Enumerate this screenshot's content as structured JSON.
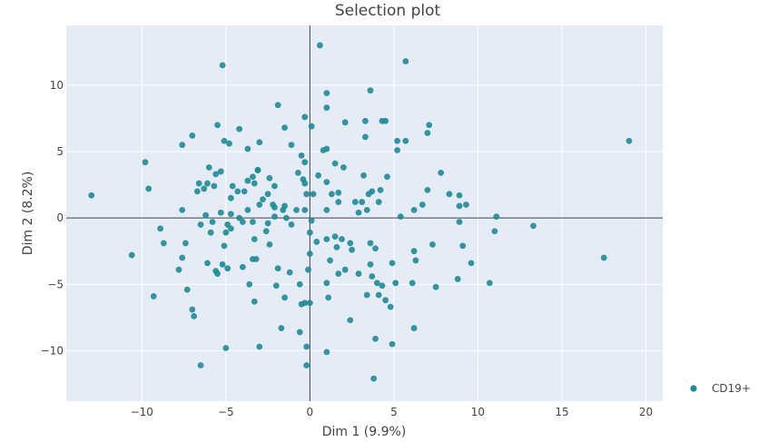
{
  "chart_data": {
    "type": "scatter",
    "title": "Selection plot",
    "xlabel": "Dim 1 (9.9%)",
    "ylabel": "Dim 2 (8.2%)",
    "xlim": [
      -14.5,
      21
    ],
    "ylim": [
      -13.8,
      14.5
    ],
    "xticks": [
      -10,
      -5,
      0,
      5,
      10,
      15,
      20
    ],
    "yticks": [
      -10,
      -5,
      0,
      5,
      10
    ],
    "xtick_labels": [
      "−10",
      "−5",
      "0",
      "5",
      "10",
      "15",
      "20"
    ],
    "ytick_labels": [
      "−10",
      "−5",
      "0",
      "5",
      "10"
    ],
    "grid": true,
    "zero_lines": true,
    "legend_position": "right",
    "colors": {
      "plot_bg": "#e5ecf6",
      "grid": "#ffffff",
      "zero_line": "#444444",
      "marker": "#1f8a96"
    },
    "series": [
      {
        "name": "CD19+",
        "points": [
          [
            0.6,
            13.0
          ],
          [
            5.7,
            11.8
          ],
          [
            -5.2,
            11.5
          ],
          [
            1.0,
            9.4
          ],
          [
            3.6,
            9.6
          ],
          [
            -1.9,
            8.5
          ],
          [
            1.0,
            8.3
          ],
          [
            -0.3,
            7.6
          ],
          [
            2.1,
            7.2
          ],
          [
            3.3,
            7.3
          ],
          [
            4.3,
            7.3
          ],
          [
            4.5,
            7.3
          ],
          [
            7.1,
            7.0
          ],
          [
            -5.5,
            7.0
          ],
          [
            -1.5,
            6.8
          ],
          [
            -4.2,
            6.7
          ],
          [
            0.1,
            6.9
          ],
          [
            3.3,
            6.1
          ],
          [
            7.0,
            6.4
          ],
          [
            -7.0,
            6.2
          ],
          [
            -5.1,
            5.8
          ],
          [
            -4.8,
            5.6
          ],
          [
            -3.0,
            5.7
          ],
          [
            -1.1,
            5.5
          ],
          [
            5.2,
            5.8
          ],
          [
            5.7,
            5.8
          ],
          [
            19.0,
            5.8
          ],
          [
            -7.6,
            5.5
          ],
          [
            -3.7,
            5.2
          ],
          [
            0.8,
            5.1
          ],
          [
            1.0,
            5.2
          ],
          [
            5.2,
            5.1
          ],
          [
            -9.8,
            4.2
          ],
          [
            -0.5,
            4.7
          ],
          [
            -0.3,
            4.2
          ],
          [
            1.5,
            4.1
          ],
          [
            2.0,
            3.8
          ],
          [
            -6.0,
            3.8
          ],
          [
            -5.3,
            3.5
          ],
          [
            -3.1,
            3.6
          ],
          [
            -3.1,
            3.6
          ],
          [
            -0.7,
            3.4
          ],
          [
            7.8,
            3.4
          ],
          [
            -5.6,
            3.3
          ],
          [
            -3.4,
            3.1
          ],
          [
            -2.4,
            3.0
          ],
          [
            0.5,
            3.2
          ],
          [
            3.2,
            3.2
          ],
          [
            4.6,
            3.1
          ],
          [
            -3.7,
            2.8
          ],
          [
            -0.4,
            2.9
          ],
          [
            -6.6,
            2.6
          ],
          [
            -6.1,
            2.6
          ],
          [
            -5.7,
            2.4
          ],
          [
            -4.6,
            2.4
          ],
          [
            -3.3,
            2.6
          ],
          [
            -2.1,
            2.4
          ],
          [
            -0.3,
            2.6
          ],
          [
            1.0,
            2.7
          ],
          [
            -9.6,
            2.2
          ],
          [
            -6.7,
            2.0
          ],
          [
            -6.3,
            2.2
          ],
          [
            -3.9,
            2.0
          ],
          [
            -4.3,
            2.0
          ],
          [
            -2.5,
            1.8
          ],
          [
            -0.2,
            1.8
          ],
          [
            0.2,
            1.8
          ],
          [
            1.7,
            1.9
          ],
          [
            3.7,
            2.0
          ],
          [
            4.2,
            2.1
          ],
          [
            7.0,
            2.1
          ],
          [
            8.3,
            1.8
          ],
          [
            8.9,
            1.7
          ],
          [
            -13.0,
            1.7
          ],
          [
            -4.7,
            1.5
          ],
          [
            -2.8,
            1.4
          ],
          [
            1.3,
            1.8
          ],
          [
            3.5,
            1.8
          ],
          [
            -7.6,
            0.6
          ],
          [
            -3.0,
            1.0
          ],
          [
            -2.2,
            1.0
          ],
          [
            -1.5,
            0.9
          ],
          [
            1.7,
            1.2
          ],
          [
            2.7,
            1.2
          ],
          [
            3.1,
            1.2
          ],
          [
            4.1,
            1.2
          ],
          [
            6.7,
            1.0
          ],
          [
            8.9,
            0.9
          ],
          [
            9.3,
            1.0
          ],
          [
            -5.3,
            0.4
          ],
          [
            -4.7,
            0.3
          ],
          [
            -3.7,
            0.6
          ],
          [
            -2.1,
            0.8
          ],
          [
            -1.6,
            0.6
          ],
          [
            -0.8,
            0.6
          ],
          [
            -0.3,
            0.6
          ],
          [
            1.0,
            0.6
          ],
          [
            2.9,
            0.4
          ],
          [
            3.4,
            0.6
          ],
          [
            6.2,
            0.6
          ],
          [
            5.4,
            0.1
          ],
          [
            11.1,
            0.1
          ],
          [
            -6.2,
            0.2
          ],
          [
            -4.2,
            0.0
          ],
          [
            -2.1,
            0.1
          ],
          [
            -1.4,
            0.0
          ],
          [
            -4.9,
            -0.5
          ],
          [
            -6.5,
            -0.5
          ],
          [
            -5.8,
            -0.3
          ],
          [
            -4.0,
            -0.3
          ],
          [
            -3.4,
            -0.3
          ],
          [
            -2.5,
            -0.4
          ],
          [
            -1.1,
            -0.5
          ],
          [
            0.1,
            -0.2
          ],
          [
            -8.9,
            -0.8
          ],
          [
            -4.7,
            -0.8
          ],
          [
            -2.6,
            -1.0
          ],
          [
            8.9,
            -0.3
          ],
          [
            11.0,
            -1.0
          ],
          [
            13.3,
            -0.6
          ],
          [
            -5.9,
            -1.1
          ],
          [
            -5.0,
            -1.1
          ],
          [
            0.0,
            -1.1
          ],
          [
            -3.3,
            -1.6
          ],
          [
            1.0,
            -1.6
          ],
          [
            1.5,
            -1.4
          ],
          [
            1.9,
            -1.6
          ],
          [
            -8.7,
            -1.9
          ],
          [
            -7.4,
            -1.9
          ],
          [
            -2.4,
            -2.0
          ],
          [
            0.4,
            -1.8
          ],
          [
            2.4,
            -1.9
          ],
          [
            3.6,
            -1.9
          ],
          [
            7.3,
            -2.0
          ],
          [
            9.1,
            -2.1
          ],
          [
            -5.1,
            -2.1
          ],
          [
            2.5,
            -2.4
          ],
          [
            1.6,
            -2.2
          ],
          [
            3.9,
            -2.3
          ],
          [
            6.2,
            -2.5
          ],
          [
            -10.6,
            -2.8
          ],
          [
            0.0,
            -2.7
          ],
          [
            -7.6,
            -3.0
          ],
          [
            -3.4,
            -3.1
          ],
          [
            -3.2,
            -3.1
          ],
          [
            1.2,
            -3.2
          ],
          [
            3.6,
            -3.5
          ],
          [
            4.9,
            -3.4
          ],
          [
            6.3,
            -3.2
          ],
          [
            9.6,
            -3.4
          ],
          [
            17.5,
            -3.0
          ],
          [
            -6.1,
            -3.4
          ],
          [
            -5.2,
            -3.5
          ],
          [
            -4.0,
            -3.7
          ],
          [
            -4.9,
            -3.8
          ],
          [
            -5.6,
            -4.0
          ],
          [
            -5.5,
            -4.2
          ],
          [
            -1.9,
            -3.8
          ],
          [
            -1.2,
            -4.1
          ],
          [
            -0.1,
            -3.9
          ],
          [
            2.1,
            -3.9
          ],
          [
            1.7,
            -4.2
          ],
          [
            -7.8,
            -3.9
          ],
          [
            2.9,
            -4.2
          ],
          [
            3.7,
            -4.4
          ],
          [
            8.8,
            -4.6
          ],
          [
            1.0,
            -4.9
          ],
          [
            4.0,
            -4.9
          ],
          [
            4.3,
            -5.1
          ],
          [
            5.1,
            -4.9
          ],
          [
            6.1,
            -4.9
          ],
          [
            7.5,
            -5.2
          ],
          [
            10.7,
            -4.9
          ],
          [
            -7.3,
            -5.4
          ],
          [
            -3.6,
            -5.0
          ],
          [
            -2.0,
            -5.1
          ],
          [
            -0.6,
            -5.0
          ],
          [
            -9.3,
            -5.9
          ],
          [
            3.4,
            -5.8
          ],
          [
            4.1,
            -5.8
          ],
          [
            4.5,
            -6.2
          ],
          [
            1.1,
            -6.0
          ],
          [
            -3.3,
            -6.3
          ],
          [
            -1.5,
            -6.0
          ],
          [
            -0.5,
            -6.5
          ],
          [
            -0.3,
            -6.4
          ],
          [
            0.0,
            -6.4
          ],
          [
            -7.0,
            -6.9
          ],
          [
            -6.9,
            -7.4
          ],
          [
            4.8,
            -6.7
          ],
          [
            2.4,
            -7.7
          ],
          [
            -1.7,
            -8.3
          ],
          [
            -0.6,
            -8.6
          ],
          [
            6.2,
            -8.3
          ],
          [
            3.9,
            -9.1
          ],
          [
            -3.0,
            -9.7
          ],
          [
            -5.0,
            -9.8
          ],
          [
            -0.2,
            -9.7
          ],
          [
            1.0,
            -10.1
          ],
          [
            4.9,
            -9.5
          ],
          [
            -6.5,
            -11.1
          ],
          [
            -0.2,
            -11.1
          ],
          [
            3.8,
            -12.1
          ]
        ]
      }
    ]
  }
}
